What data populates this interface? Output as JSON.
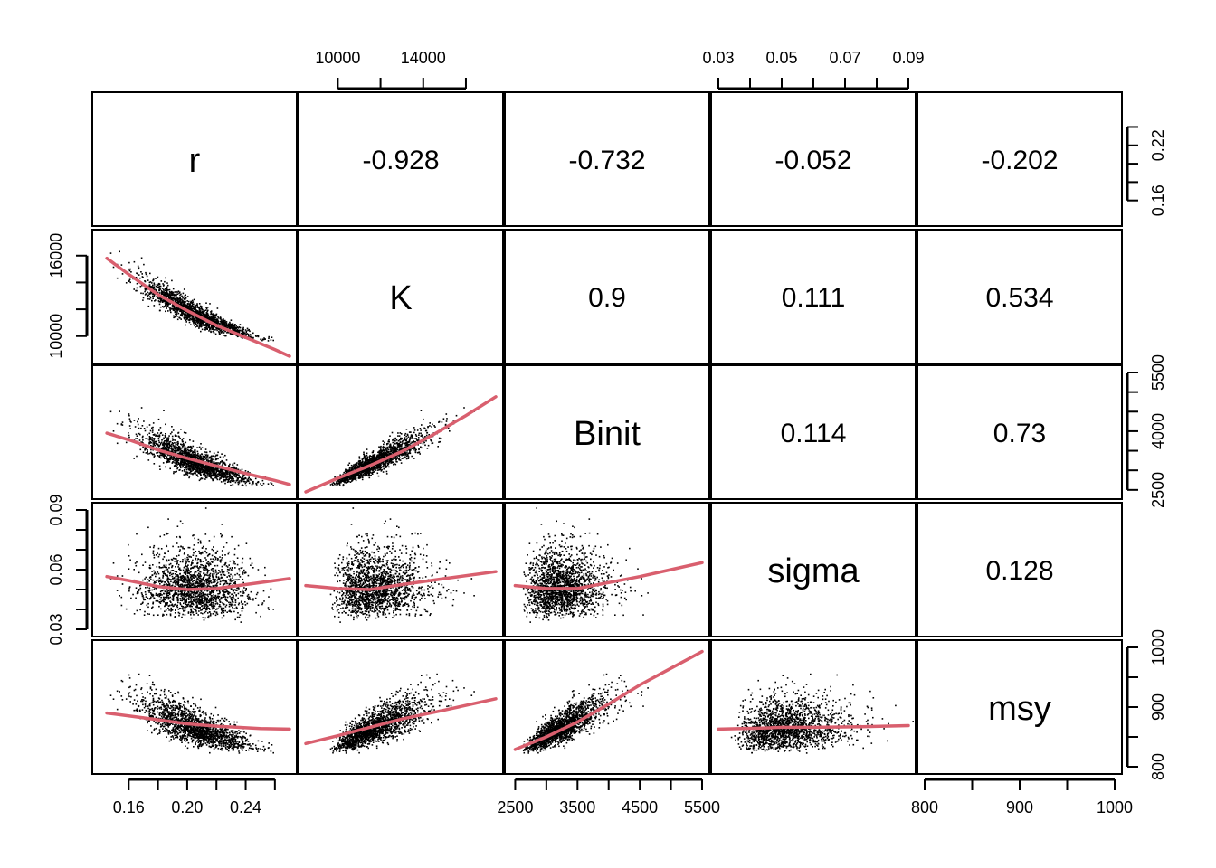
{
  "chart_data": {
    "type": "scatter",
    "variables": [
      "r",
      "K",
      "Binit",
      "sigma",
      "msy"
    ],
    "ranges": {
      "r": [
        0.14,
        0.27
      ],
      "K": [
        8500,
        17400
      ],
      "Binit": [
        2450,
        5500
      ],
      "sigma": [
        0.03,
        0.09
      ],
      "msy": [
        800,
        1000
      ]
    },
    "centers": {
      "r": {
        "mean": 0.205,
        "sd": 0.018
      },
      "K": {
        "mean": 11800,
        "sd": 1050
      },
      "Binit": {
        "mean": 3260,
        "sd": 320
      },
      "sigma": {
        "mean": 0.052,
        "sd": 0.0082
      },
      "msy": {
        "mean": 868,
        "sd": 20
      }
    },
    "correlations": [
      {
        "row": "r",
        "col": "K",
        "value": "-0.928"
      },
      {
        "row": "r",
        "col": "Binit",
        "value": "-0.732"
      },
      {
        "row": "r",
        "col": "sigma",
        "value": "-0.052"
      },
      {
        "row": "r",
        "col": "msy",
        "value": "-0.202"
      },
      {
        "row": "K",
        "col": "Binit",
        "value": "0.9"
      },
      {
        "row": "K",
        "col": "sigma",
        "value": "0.111"
      },
      {
        "row": "K",
        "col": "msy",
        "value": "0.534"
      },
      {
        "row": "Binit",
        "col": "sigma",
        "value": "0.114"
      },
      {
        "row": "Binit",
        "col": "msy",
        "value": "0.73"
      },
      {
        "row": "sigma",
        "col": "msy",
        "value": "0.128"
      }
    ],
    "axes": [
      {
        "var": "r",
        "side": "bottom",
        "ticks": [
          0.16,
          0.18,
          0.2,
          0.22,
          0.24,
          0.26
        ],
        "labels": [
          {
            "v": 0.16,
            "t": "0.16"
          },
          {
            "v": 0.2,
            "t": "0.20"
          },
          {
            "v": 0.24,
            "t": "0.24"
          }
        ]
      },
      {
        "var": "K",
        "side": "top",
        "ticks": [
          10000,
          12000,
          14000,
          16000
        ],
        "labels": [
          {
            "v": 10000,
            "t": "10000"
          },
          {
            "v": 14000,
            "t": "14000"
          }
        ]
      },
      {
        "var": "Binit",
        "side": "bottom",
        "ticks": [
          2500,
          3000,
          3500,
          4000,
          4500,
          5000,
          5500
        ],
        "labels": [
          {
            "v": 2500,
            "t": "2500"
          },
          {
            "v": 3500,
            "t": "3500"
          },
          {
            "v": 4500,
            "t": "4500"
          },
          {
            "v": 5500,
            "t": "5500"
          }
        ]
      },
      {
        "var": "sigma",
        "side": "top",
        "ticks": [
          0.03,
          0.04,
          0.05,
          0.06,
          0.07,
          0.08,
          0.09
        ],
        "labels": [
          {
            "v": 0.03,
            "t": "0.03"
          },
          {
            "v": 0.05,
            "t": "0.05"
          },
          {
            "v": 0.07,
            "t": "0.07"
          },
          {
            "v": 0.09,
            "t": "0.09"
          }
        ]
      },
      {
        "var": "msy",
        "side": "bottom",
        "ticks": [
          800,
          850,
          900,
          950,
          1000
        ],
        "labels": [
          {
            "v": 800,
            "t": "800"
          },
          {
            "v": 900,
            "t": "900"
          },
          {
            "v": 1000,
            "t": "1000"
          }
        ]
      },
      {
        "var": "r",
        "side": "right",
        "ticks": [
          0.16,
          0.18,
          0.2,
          0.22,
          0.24
        ],
        "labels": [
          {
            "v": 0.16,
            "t": "0.16"
          },
          {
            "v": 0.22,
            "t": "0.22"
          }
        ]
      },
      {
        "var": "K",
        "side": "left",
        "ticks": [
          10000,
          12000,
          14000,
          16000
        ],
        "labels": [
          {
            "v": 10000,
            "t": "10000"
          },
          {
            "v": 16000,
            "t": "16000"
          }
        ]
      },
      {
        "var": "Binit",
        "side": "right",
        "ticks": [
          2500,
          3000,
          3500,
          4000,
          4500,
          5000,
          5500
        ],
        "labels": [
          {
            "v": 2500,
            "t": "2500"
          },
          {
            "v": 4000,
            "t": "4000"
          },
          {
            "v": 5500,
            "t": "5500"
          }
        ]
      },
      {
        "var": "sigma",
        "side": "left",
        "ticks": [
          0.03,
          0.04,
          0.05,
          0.06,
          0.07,
          0.08,
          0.09
        ],
        "labels": [
          {
            "v": 0.03,
            "t": "0.03"
          },
          {
            "v": 0.06,
            "t": "0.06"
          },
          {
            "v": 0.09,
            "t": "0.09"
          }
        ]
      },
      {
        "var": "msy",
        "side": "right",
        "ticks": [
          800,
          850,
          900,
          950,
          1000
        ],
        "labels": [
          {
            "v": 800,
            "t": "800"
          },
          {
            "v": 900,
            "t": "900"
          },
          {
            "v": 1000,
            "t": "1000"
          }
        ]
      }
    ],
    "smoothers": [
      {
        "x": "r",
        "y": "K",
        "points": [
          [
            0.145,
            15800
          ],
          [
            0.16,
            14600
          ],
          [
            0.18,
            13100
          ],
          [
            0.2,
            11900
          ],
          [
            0.22,
            10800
          ],
          [
            0.24,
            9900
          ],
          [
            0.26,
            9000
          ],
          [
            0.27,
            8500
          ]
        ]
      },
      {
        "x": "r",
        "y": "Binit",
        "points": [
          [
            0.145,
            3950
          ],
          [
            0.16,
            3780
          ],
          [
            0.18,
            3520
          ],
          [
            0.2,
            3310
          ],
          [
            0.22,
            3110
          ],
          [
            0.24,
            2920
          ],
          [
            0.26,
            2740
          ],
          [
            0.27,
            2640
          ]
        ]
      },
      {
        "x": "r",
        "y": "sigma",
        "points": [
          [
            0.145,
            0.0565
          ],
          [
            0.16,
            0.0545
          ],
          [
            0.18,
            0.0515
          ],
          [
            0.2,
            0.05
          ],
          [
            0.22,
            0.0505
          ],
          [
            0.24,
            0.0525
          ],
          [
            0.27,
            0.0555
          ]
        ]
      },
      {
        "x": "r",
        "y": "msy",
        "points": [
          [
            0.145,
            890
          ],
          [
            0.17,
            882
          ],
          [
            0.2,
            872
          ],
          [
            0.22,
            868
          ],
          [
            0.25,
            864
          ],
          [
            0.27,
            863
          ]
        ]
      },
      {
        "x": "K",
        "y": "Binit",
        "points": [
          [
            8500,
            2450
          ],
          [
            10000,
            2800
          ],
          [
            11500,
            3120
          ],
          [
            13000,
            3480
          ],
          [
            14500,
            3920
          ],
          [
            16000,
            4400
          ],
          [
            17400,
            4880
          ]
        ]
      },
      {
        "x": "K",
        "y": "sigma",
        "points": [
          [
            8500,
            0.052
          ],
          [
            10000,
            0.0505
          ],
          [
            11500,
            0.05
          ],
          [
            13000,
            0.0525
          ],
          [
            15000,
            0.0555
          ],
          [
            17400,
            0.059
          ]
        ]
      },
      {
        "x": "K",
        "y": "msy",
        "points": [
          [
            8500,
            839
          ],
          [
            10000,
            852
          ],
          [
            11500,
            866
          ],
          [
            13000,
            880
          ],
          [
            15000,
            895
          ],
          [
            17400,
            914
          ]
        ]
      },
      {
        "x": "Binit",
        "y": "sigma",
        "points": [
          [
            2500,
            0.052
          ],
          [
            3000,
            0.0505
          ],
          [
            3500,
            0.0505
          ],
          [
            4000,
            0.0535
          ],
          [
            4500,
            0.0565
          ],
          [
            5000,
            0.06
          ],
          [
            5500,
            0.0635
          ]
        ]
      },
      {
        "x": "Binit",
        "y": "msy",
        "points": [
          [
            2500,
            829
          ],
          [
            3000,
            850
          ],
          [
            3500,
            875
          ],
          [
            4000,
            905
          ],
          [
            4500,
            937
          ],
          [
            5000,
            965
          ],
          [
            5500,
            993
          ]
        ]
      },
      {
        "x": "sigma",
        "y": "msy",
        "points": [
          [
            0.03,
            863
          ],
          [
            0.045,
            865
          ],
          [
            0.05,
            866
          ],
          [
            0.06,
            866
          ],
          [
            0.075,
            867
          ],
          [
            0.09,
            869
          ]
        ]
      }
    ]
  }
}
